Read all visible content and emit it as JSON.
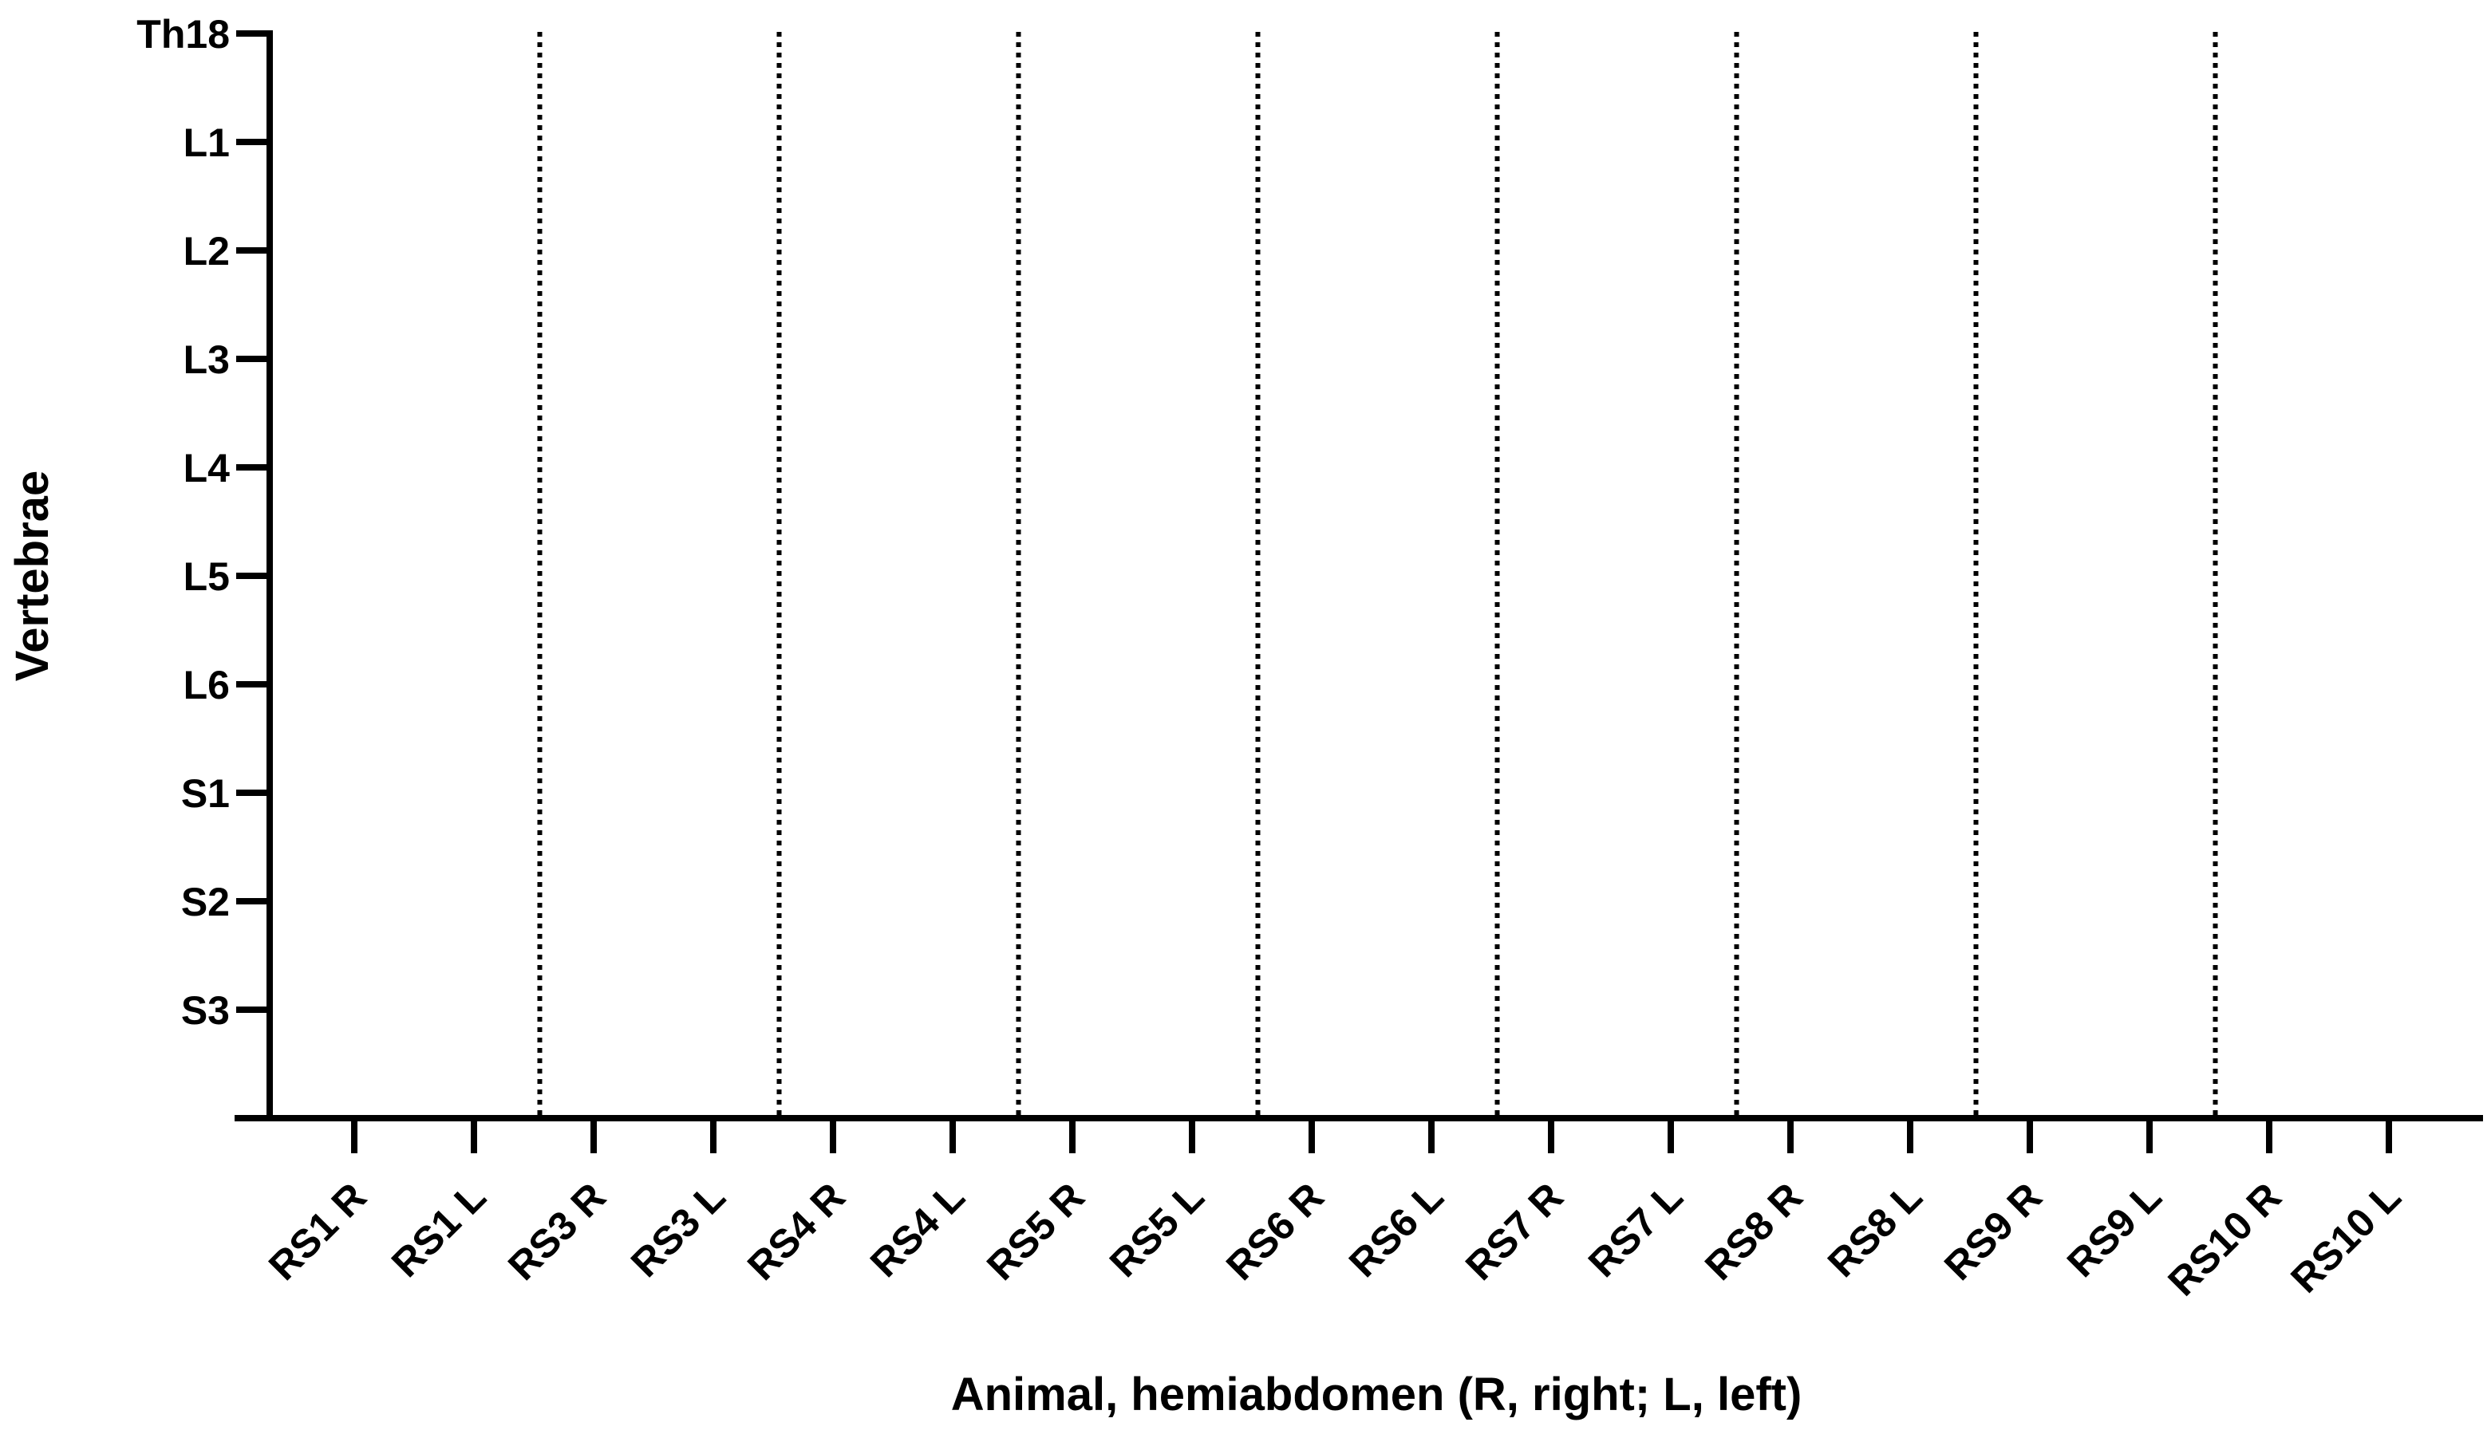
{
  "chart_data": {
    "type": "scatter",
    "title": "",
    "xlabel": "Animal, hemiabdomen (R, right; L, left)",
    "ylabel": "Vertebrae",
    "categories": [
      "RS1 R",
      "RS1 L",
      "RS3 R",
      "RS3 L",
      "RS4 R",
      "RS4 L",
      "RS5 R",
      "RS5 L",
      "RS6 R",
      "RS6 L",
      "RS7 R",
      "RS7 L",
      "RS8 R",
      "RS8 L",
      "RS9 R",
      "RS9 L",
      "RS10 R",
      "RS10 L"
    ],
    "y_categories": [
      "Th18",
      "L1",
      "L2",
      "L3",
      "L4",
      "L5",
      "L6",
      "S1",
      "S2",
      "S3"
    ],
    "series": [],
    "animal_separators_after_category": [
      "RS1 L",
      "RS3 L",
      "RS4 L",
      "RS5 L",
      "RS6 L",
      "RS7 L",
      "RS8 L",
      "RS9 L"
    ],
    "separator_style": "dotted",
    "grid": false,
    "legend": "none"
  },
  "colors": {
    "axis": "#000000",
    "separator": "#000000",
    "background": "#ffffff"
  }
}
